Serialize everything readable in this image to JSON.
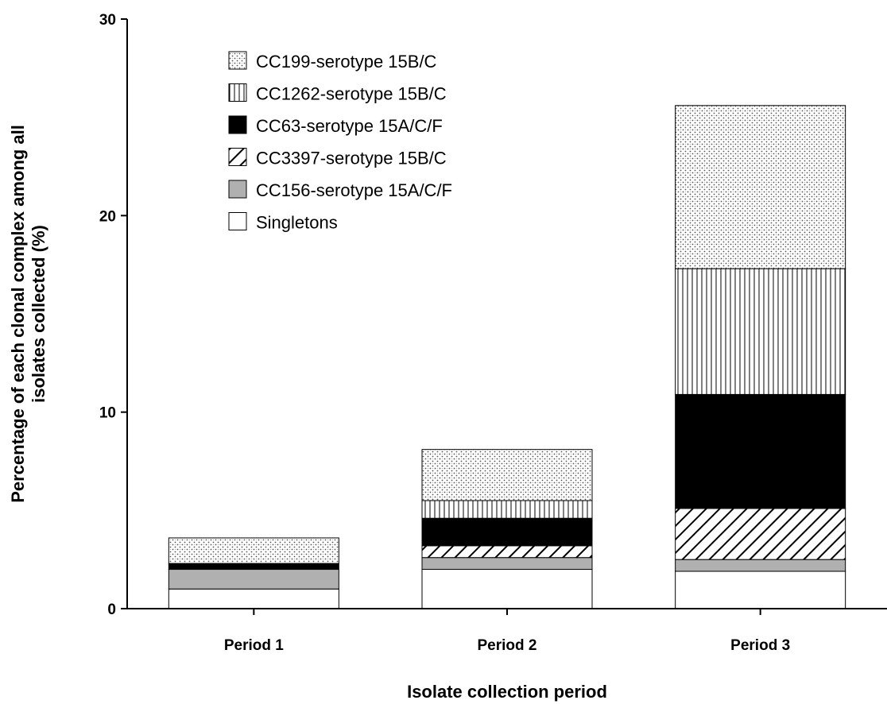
{
  "chart_data": {
    "type": "bar",
    "stacked": true,
    "title": "",
    "xlabel": "Isolate collection period",
    "ylabel_lines": [
      "Percentage of each clonal complex among all",
      "isolates collected (%)"
    ],
    "ylim": [
      0,
      30
    ],
    "yticks": [
      0,
      10,
      20,
      30
    ],
    "grid": false,
    "legend_position": "top-left",
    "categories": [
      "Period 1",
      "Period 2",
      "Period 3"
    ],
    "series": [
      {
        "name": "Singletons",
        "pattern": "white",
        "values": [
          1.0,
          2.0,
          1.9
        ]
      },
      {
        "name": "CC156-serotype 15A/C/F",
        "pattern": "gray",
        "values": [
          1.0,
          0.6,
          0.6
        ]
      },
      {
        "name": "CC3397-serotype 15B/C",
        "pattern": "diagonal",
        "values": [
          0.0,
          0.6,
          2.6
        ]
      },
      {
        "name": "CC63-serotype 15A/C/F",
        "pattern": "black",
        "values": [
          0.3,
          1.4,
          5.8
        ]
      },
      {
        "name": "CC1262-serotype 15B/C",
        "pattern": "vertical",
        "values": [
          0.0,
          0.9,
          6.4
        ]
      },
      {
        "name": "CC199-serotype 15B/C",
        "pattern": "dotted",
        "values": [
          1.3,
          2.6,
          8.3
        ]
      }
    ],
    "legend_order": [
      "CC199-serotype 15B/C",
      "CC1262-serotype 15B/C",
      "CC63-serotype 15A/C/F",
      "CC3397-serotype 15B/C",
      "CC156-serotype 15A/C/F",
      "Singletons"
    ],
    "colors": {
      "gray": "#b0b0b0",
      "black": "#000000",
      "white": "#ffffff",
      "stroke": "#000000"
    }
  }
}
